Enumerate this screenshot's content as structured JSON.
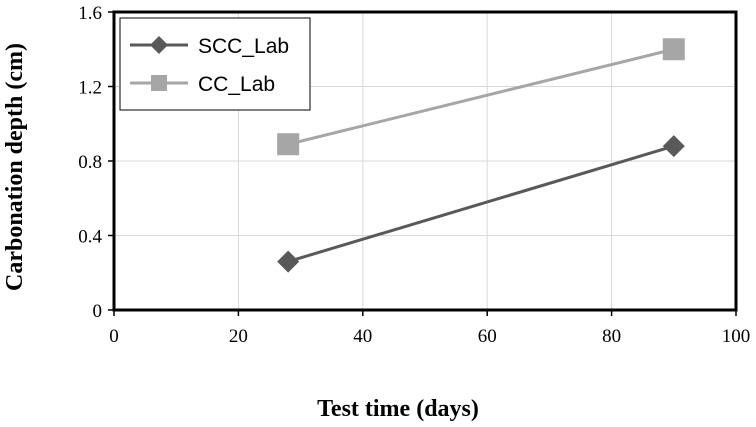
{
  "chart_data": {
    "type": "line",
    "title": "",
    "xlabel": "Test time (days)",
    "ylabel": "Carbonation depth (cm)",
    "xlim": [
      0,
      100
    ],
    "ylim": [
      0,
      1.6
    ],
    "xticks": [
      0,
      20,
      40,
      60,
      80,
      100
    ],
    "yticks": [
      0,
      0.4,
      0.8,
      1.2,
      1.6
    ],
    "xtick_labels": [
      "0",
      "20",
      "40",
      "60",
      "80",
      "100"
    ],
    "ytick_labels": [
      "0",
      "0.4",
      "0.8",
      "1.2",
      "1.6"
    ],
    "grid": "horizontal and vertical",
    "legend_position": "top-left",
    "series": [
      {
        "name": "SCC_Lab",
        "marker": "diamond",
        "color": "#595959",
        "x": [
          28,
          90
        ],
        "y": [
          0.26,
          0.88
        ]
      },
      {
        "name": "CC_Lab",
        "marker": "square",
        "color": "#a6a6a6",
        "x": [
          28,
          90
        ],
        "y": [
          0.89,
          1.4
        ]
      }
    ]
  }
}
